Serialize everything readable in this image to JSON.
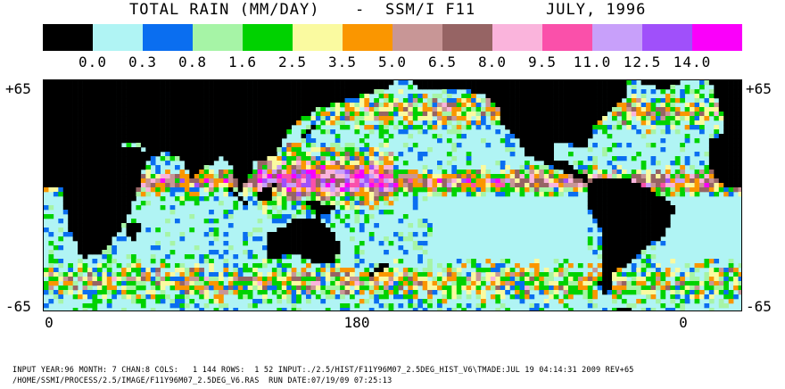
{
  "header": {
    "title": "TOTAL RAIN (MM/DAY)",
    "dash": "-",
    "sensor": "SSM/I F11",
    "date": "JULY, 1996"
  },
  "legend": {
    "colors": [
      "#000000",
      "#b0f4f4",
      "#0a6ef0",
      "#a6f4a6",
      "#00d200",
      "#fafaa0",
      "#fa9600",
      "#c89696",
      "#966464",
      "#fab4dc",
      "#fa50aa",
      "#c8a0fa",
      "#a050fa",
      "#fa00fa"
    ],
    "labels": [
      "0.0",
      "0.3",
      "0.8",
      "1.6",
      "2.5",
      "3.5",
      "5.0",
      "6.5",
      "8.0",
      "9.5",
      "11.0",
      "12.5",
      "14.0"
    ]
  },
  "axes": {
    "lat_top": "+65",
    "lat_bottom": "-65",
    "lon_left": "0",
    "lon_mid": "180",
    "lon_right": "0"
  },
  "map": {
    "projection": "equirectangular 0E to 360E, 65S to 65N",
    "grid": "2.5 degree"
  },
  "footer": {
    "line1": "INPUT YEAR:96 MONTH: 7 CHAN:8 COLS:   1 144 ROWS:  1 52 INPUT:./2.5/HIST/F11Y96M07_2.5DEG_HIST_V6\\TMADE:JUL 19 04:14:31 2009 REV+65",
    "line2": "/HOME/SSMI/PROCESS/2.5/IMAGE/F11Y96M07_2.5DEG_V6.RAS  RUN DATE:07/19/09 07:25:13"
  }
}
